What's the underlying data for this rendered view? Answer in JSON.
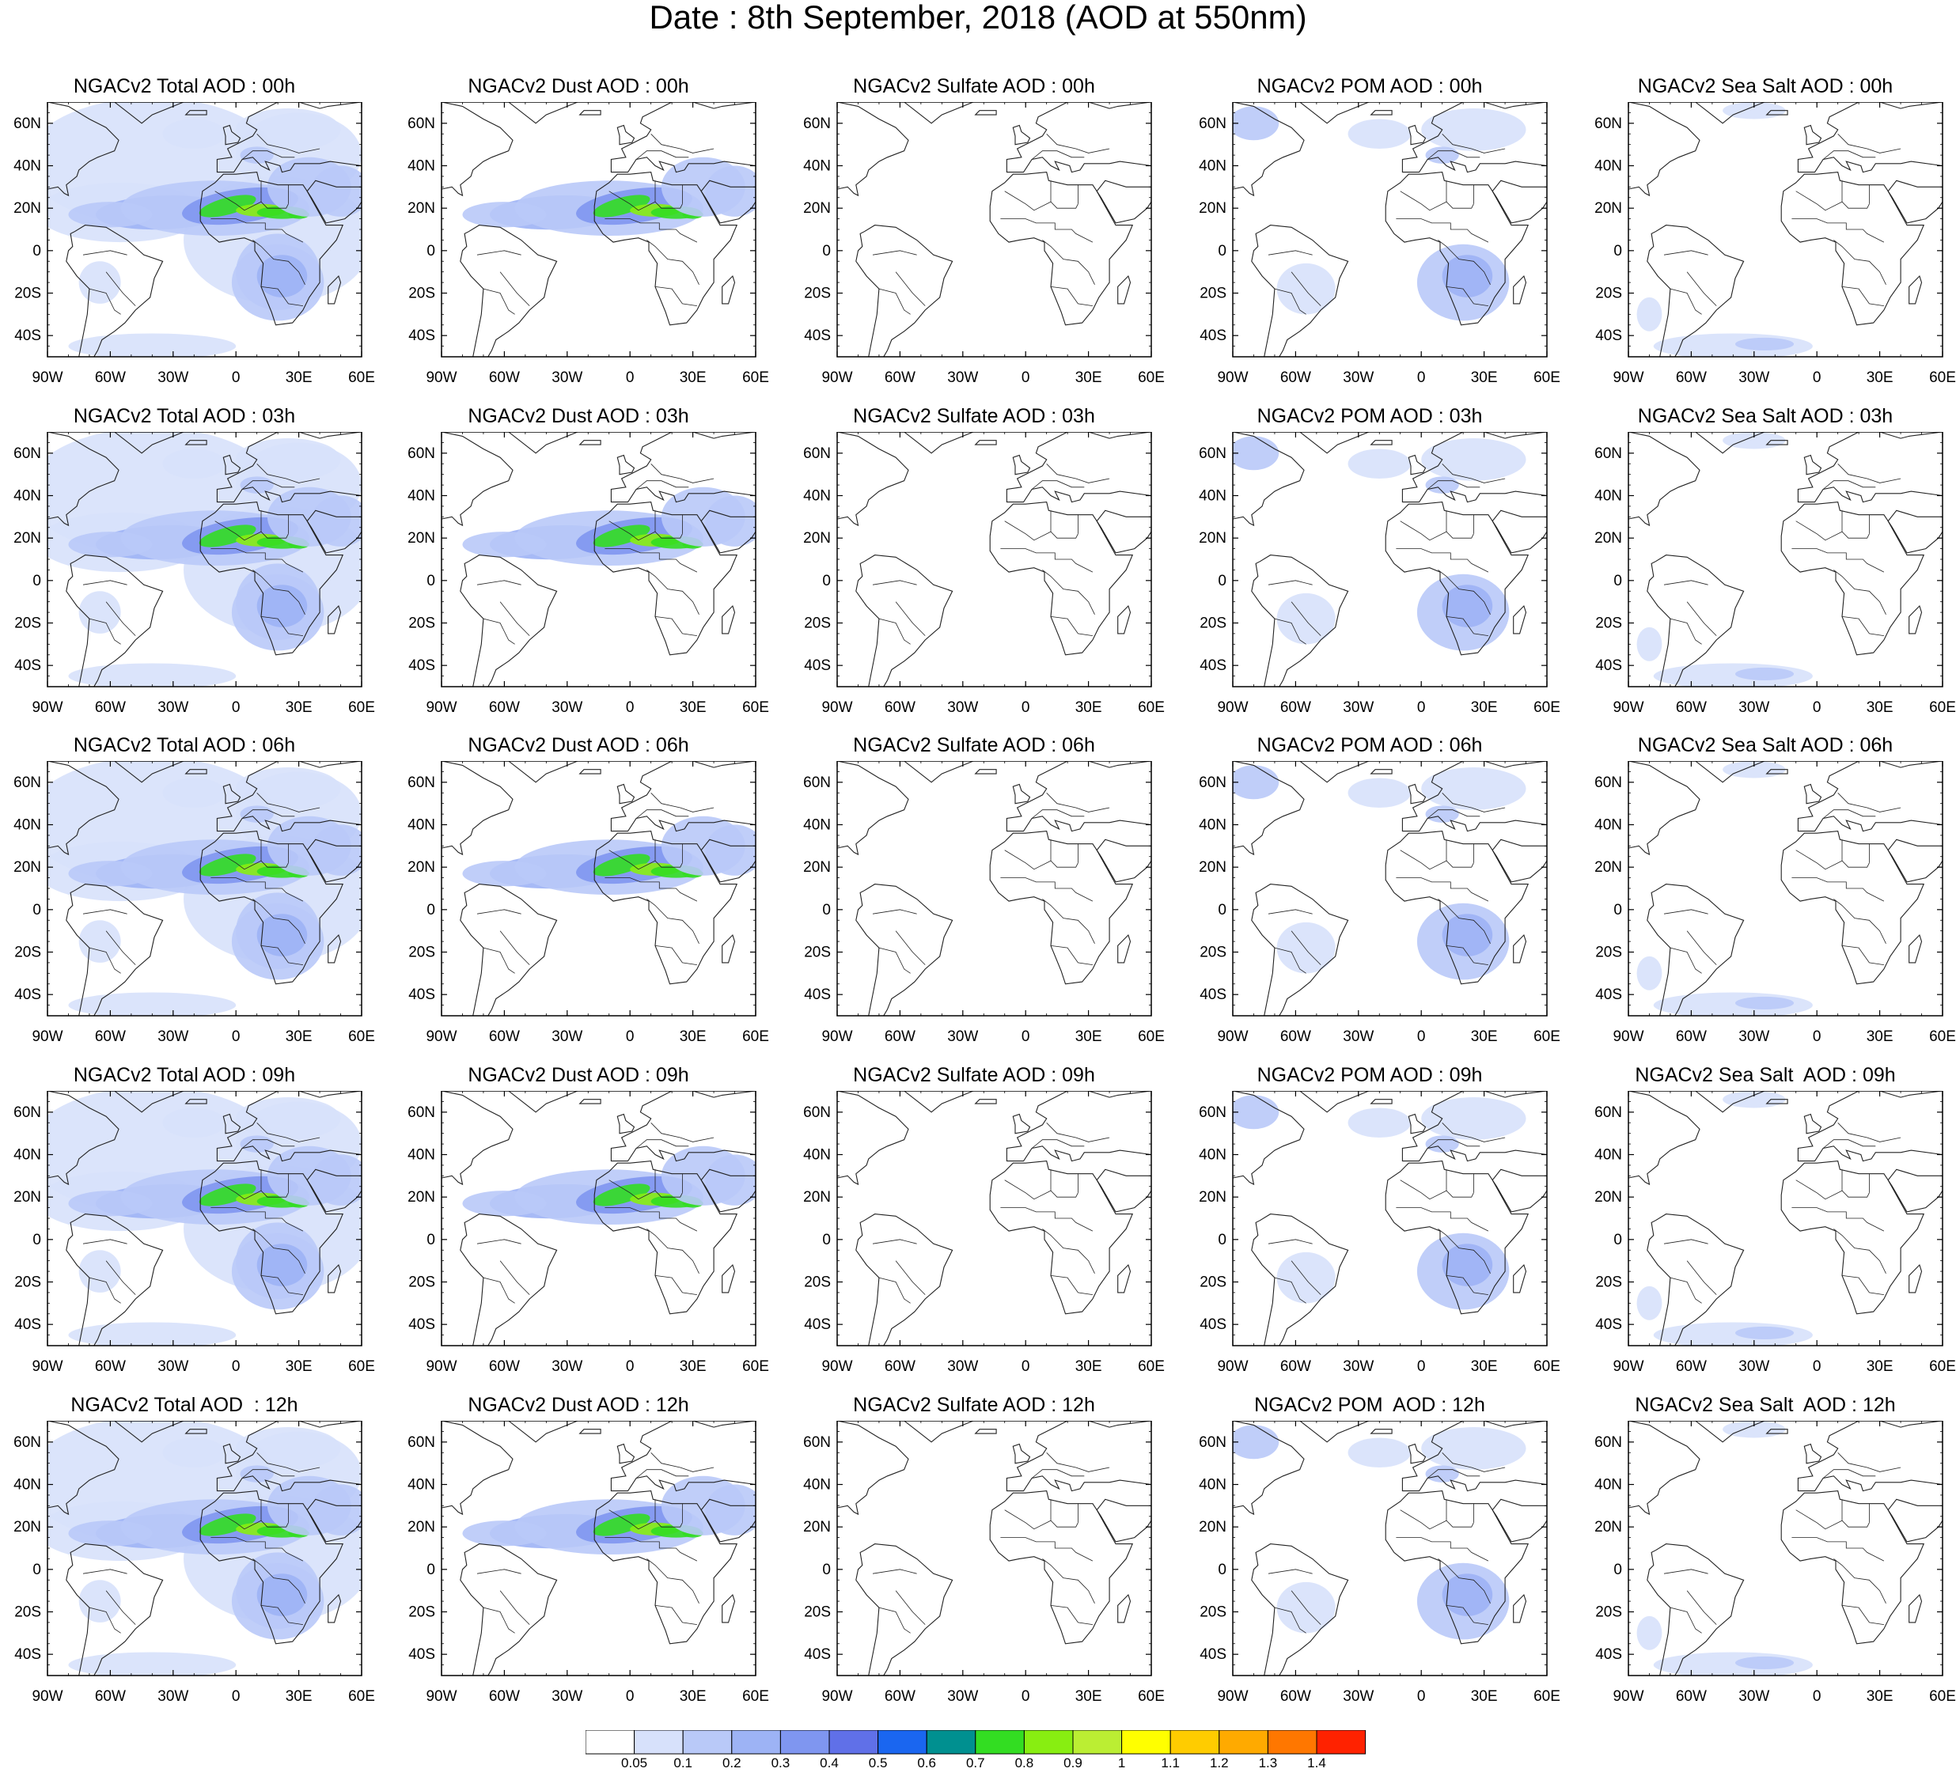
{
  "title": "Date : 8th September, 2018 (AOD at 550nm)",
  "latitude_labels": [
    "60N",
    "40N",
    "20N",
    "0",
    "20S",
    "40S"
  ],
  "longitude_labels": [
    "90W",
    "60W",
    "30W",
    "0",
    "30E",
    "60E"
  ],
  "panels": [
    {
      "title": "NGACv2 Total AOD : 00h",
      "species": "total",
      "hour": "00h"
    },
    {
      "title": "NGACv2 Dust AOD : 00h",
      "species": "dust",
      "hour": "00h"
    },
    {
      "title": "NGACv2 Sulfate AOD : 00h",
      "species": "sulfate",
      "hour": "00h"
    },
    {
      "title": "NGACv2 POM AOD : 00h",
      "species": "pom",
      "hour": "00h"
    },
    {
      "title": "NGACv2 Sea Salt AOD : 00h",
      "species": "seasalt",
      "hour": "00h"
    },
    {
      "title": "NGACv2 Total AOD : 03h",
      "species": "total",
      "hour": "03h"
    },
    {
      "title": "NGACv2 Dust AOD : 03h",
      "species": "dust",
      "hour": "03h"
    },
    {
      "title": "NGACv2 Sulfate AOD : 03h",
      "species": "sulfate",
      "hour": "03h"
    },
    {
      "title": "NGACv2 POM AOD : 03h",
      "species": "pom",
      "hour": "03h"
    },
    {
      "title": "NGACv2 Sea Salt AOD : 03h",
      "species": "seasalt",
      "hour": "03h"
    },
    {
      "title": "NGACv2 Total AOD : 06h",
      "species": "total",
      "hour": "06h"
    },
    {
      "title": "NGACv2 Dust AOD : 06h",
      "species": "dust",
      "hour": "06h"
    },
    {
      "title": "NGACv2 Sulfate AOD : 06h",
      "species": "sulfate",
      "hour": "06h"
    },
    {
      "title": "NGACv2 POM AOD : 06h",
      "species": "pom",
      "hour": "06h"
    },
    {
      "title": "NGACv2 Sea Salt AOD : 06h",
      "species": "seasalt",
      "hour": "06h"
    },
    {
      "title": "NGACv2 Total AOD : 09h",
      "species": "total",
      "hour": "09h"
    },
    {
      "title": "NGACv2 Dust AOD : 09h",
      "species": "dust",
      "hour": "09h"
    },
    {
      "title": "NGACv2 Sulfate AOD : 09h",
      "species": "sulfate",
      "hour": "09h"
    },
    {
      "title": "NGACv2 POM AOD : 09h",
      "species": "pom",
      "hour": "09h"
    },
    {
      "title": "NGACv2 Sea Salt  AOD : 09h",
      "species": "seasalt",
      "hour": "09h"
    },
    {
      "title": "NGACv2 Total AOD  : 12h",
      "species": "total",
      "hour": "12h"
    },
    {
      "title": "NGACv2 Dust AOD : 12h",
      "species": "dust",
      "hour": "12h"
    },
    {
      "title": "NGACv2 Sulfate AOD : 12h",
      "species": "sulfate",
      "hour": "12h"
    },
    {
      "title": "NGACv2 POM  AOD : 12h",
      "species": "pom",
      "hour": "12h"
    },
    {
      "title": "NGACv2 Sea Salt  AOD : 12h",
      "species": "seasalt",
      "hour": "12h"
    }
  ],
  "colorbar": {
    "labels": [
      "0.05",
      "0.1",
      "0.2",
      "0.3",
      "0.4",
      "0.5",
      "0.6",
      "0.7",
      "0.8",
      "0.9",
      "1",
      "1.1",
      "1.2",
      "1.3",
      "1.4"
    ],
    "colors": [
      "#ffffff",
      "#d7e1fb",
      "#b9c9f8",
      "#9db3f5",
      "#7f96f0",
      "#6070e8",
      "#1a66f0",
      "#009090",
      "#33dd22",
      "#88ee11",
      "#bbee33",
      "#ffff00",
      "#ffcc00",
      "#ffaa00",
      "#ff7700",
      "#ff2200"
    ]
  }
}
